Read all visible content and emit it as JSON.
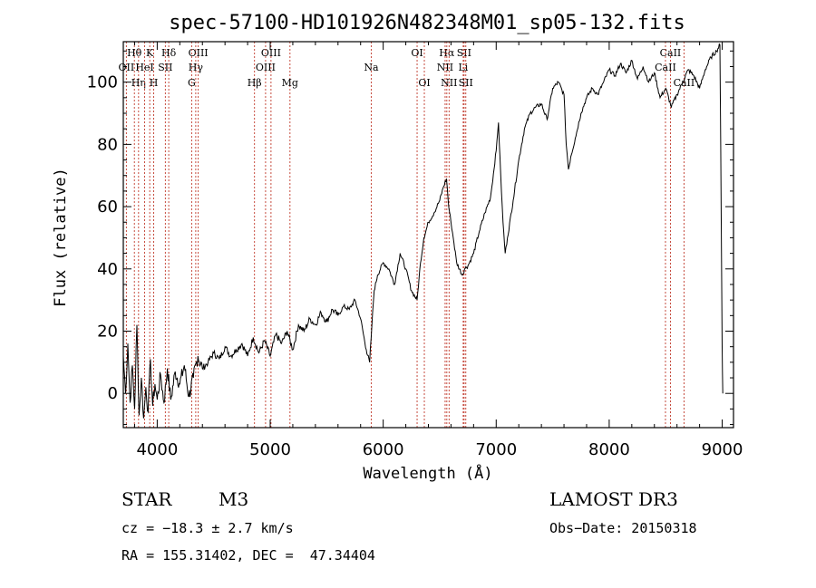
{
  "chart_data": {
    "type": "line",
    "title": "spec-57100-HD101926N482348M01_sp05-132.fits",
    "xlabel": "Wavelength (Å)",
    "ylabel": "Flux (relative)",
    "xlim": [
      3700,
      9100
    ],
    "ylim": [
      -11,
      113
    ],
    "xticks": [
      4000,
      5000,
      6000,
      7000,
      8000,
      9000
    ],
    "yticks": [
      0,
      20,
      40,
      60,
      80,
      100
    ],
    "series": [
      {
        "name": "flux",
        "x": [
          3700,
          3720,
          3740,
          3760,
          3780,
          3800,
          3820,
          3840,
          3860,
          3880,
          3900,
          3920,
          3940,
          3960,
          3980,
          4000,
          4030,
          4060,
          4090,
          4120,
          4160,
          4200,
          4240,
          4280,
          4320,
          4360,
          4400,
          4450,
          4500,
          4550,
          4600,
          4650,
          4700,
          4750,
          4800,
          4850,
          4900,
          4950,
          5000,
          5050,
          5100,
          5150,
          5200,
          5250,
          5300,
          5350,
          5400,
          5450,
          5500,
          5550,
          5600,
          5650,
          5700,
          5750,
          5800,
          5850,
          5880,
          5900,
          5920,
          5950,
          6000,
          6050,
          6100,
          6150,
          6200,
          6250,
          6300,
          6330,
          6360,
          6400,
          6450,
          6500,
          6530,
          6560,
          6580,
          6600,
          6620,
          6650,
          6700,
          6720,
          6750,
          6800,
          6850,
          6900,
          6950,
          7000,
          7020,
          7040,
          7060,
          7080,
          7100,
          7150,
          7200,
          7250,
          7300,
          7350,
          7400,
          7450,
          7500,
          7550,
          7600,
          7620,
          7640,
          7660,
          7700,
          7750,
          7800,
          7850,
          7900,
          7950,
          8000,
          8050,
          8100,
          8150,
          8200,
          8250,
          8300,
          8350,
          8400,
          8450,
          8500,
          8550,
          8600,
          8650,
          8700,
          8750,
          8800,
          8850,
          8900,
          8950,
          8980,
          9000,
          9005
        ],
        "values": [
          12,
          0,
          16,
          -3,
          9,
          -5,
          22,
          -7,
          5,
          -8,
          2,
          -6,
          11,
          -4,
          3,
          -2,
          6,
          -3,
          8,
          -2,
          7,
          3,
          9,
          -1,
          5,
          12,
          8,
          10,
          13,
          11,
          15,
          12,
          14,
          16,
          12,
          18,
          13,
          17,
          12,
          19,
          16,
          20,
          14,
          22,
          20,
          24,
          22,
          26,
          23,
          27,
          25,
          28,
          27,
          30,
          24,
          14,
          10,
          22,
          33,
          38,
          42,
          40,
          35,
          45,
          40,
          33,
          30,
          42,
          50,
          55,
          58,
          62,
          66,
          69,
          60,
          55,
          50,
          42,
          38,
          40,
          41,
          45,
          52,
          58,
          63,
          78,
          87,
          70,
          55,
          45,
          50,
          62,
          75,
          85,
          90,
          92,
          93,
          88,
          98,
          100,
          96,
          80,
          72,
          76,
          82,
          90,
          95,
          98,
          96,
          100,
          104,
          102,
          106,
          103,
          107,
          101,
          105,
          100,
          103,
          95,
          98,
          92,
          96,
          100,
          104,
          102,
          98,
          104,
          108,
          110,
          112,
          15,
          0
        ]
      }
    ],
    "line_markers": [
      {
        "label": "Hθ",
        "x": 3798,
        "row": 1
      },
      {
        "label": "OII",
        "x": 3727,
        "row": 2
      },
      {
        "label": "Hη",
        "x": 3835,
        "row": 3
      },
      {
        "label": "K",
        "x": 3934,
        "row": 1
      },
      {
        "label": "HeI",
        "x": 3889,
        "row": 2
      },
      {
        "label": "H",
        "x": 3969,
        "row": 3
      },
      {
        "label": "Hδ",
        "x": 4102,
        "row": 1
      },
      {
        "label": "SII",
        "x": 4072,
        "row": 2
      },
      {
        "label": "OIII",
        "x": 4363,
        "row": 1
      },
      {
        "label": "Hγ",
        "x": 4341,
        "row": 2
      },
      {
        "label": "G",
        "x": 4305,
        "row": 3
      },
      {
        "label": "OIII",
        "x": 5007,
        "row": 1
      },
      {
        "label": "OIII",
        "x": 4959,
        "row": 2
      },
      {
        "label": "Hβ",
        "x": 4861,
        "row": 3
      },
      {
        "label": "Mg",
        "x": 5175,
        "row": 3
      },
      {
        "label": "Na",
        "x": 5894,
        "row": 2
      },
      {
        "label": "OI",
        "x": 6300,
        "row": 1
      },
      {
        "label": "OI",
        "x": 6364,
        "row": 3
      },
      {
        "label": "Hα",
        "x": 6563,
        "row": 1
      },
      {
        "label": "SII",
        "x": 6716,
        "row": 1
      },
      {
        "label": "NII",
        "x": 6548,
        "row": 2
      },
      {
        "label": "Li",
        "x": 6708,
        "row": 2
      },
      {
        "label": "NII",
        "x": 6583,
        "row": 3
      },
      {
        "label": "SII",
        "x": 6731,
        "row": 3
      },
      {
        "label": "CaII",
        "x": 8542,
        "row": 1
      },
      {
        "label": "CaII",
        "x": 8498,
        "row": 2
      },
      {
        "label": "CaII",
        "x": 8662,
        "row": 3
      }
    ]
  },
  "info": {
    "object_class": "STAR",
    "subclass": "M3",
    "survey": "LAMOST DR3",
    "cz": "cz = −18.3 ± 2.7 km/s",
    "obs_date": "Obs−Date: 20150318",
    "radec": "RA = 155.31402, DEC =  47.34404"
  }
}
